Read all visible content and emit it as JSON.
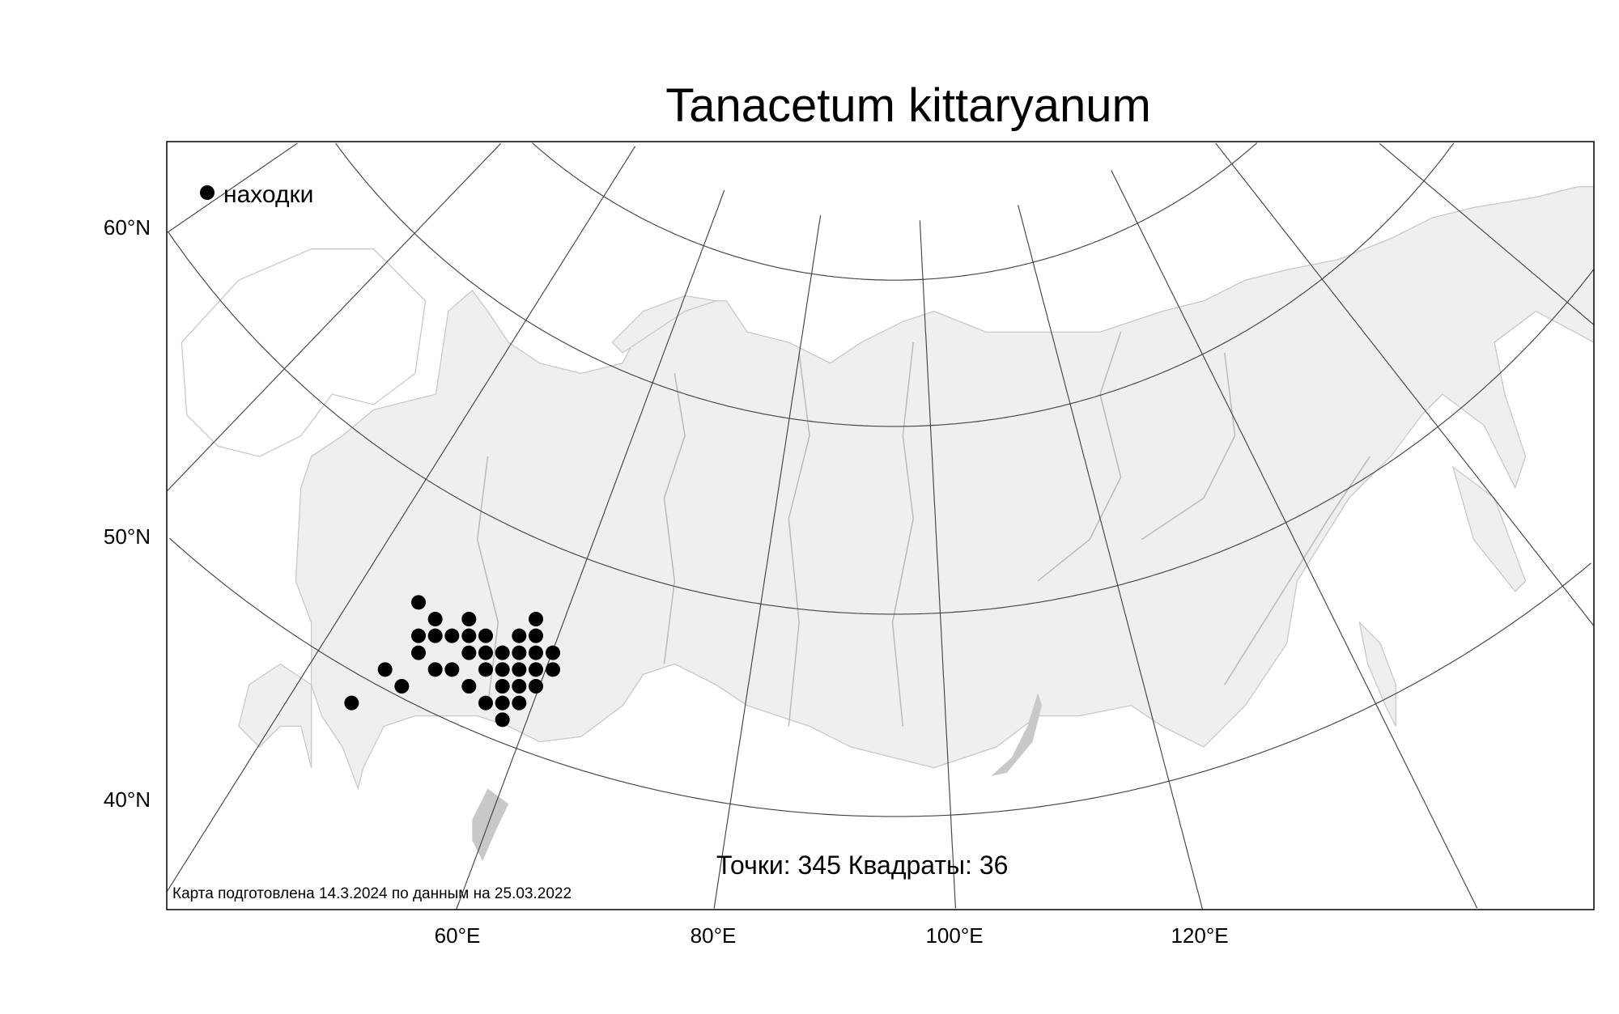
{
  "title": "Tanacetum kittaryanum",
  "legend": {
    "marker_label": "находки",
    "marker_color": "#000000"
  },
  "axes": {
    "lat_labels": [
      "60°N",
      "50°N",
      "40°N"
    ],
    "lon_labels": [
      "60°E",
      "80°E",
      "100°E",
      "120°E"
    ]
  },
  "stats_text": "Точки: 345 Квадраты: 36",
  "caption": "Карта подготовлена 14.3.2024 по данным на 25.03.2022",
  "colors": {
    "land": "#efefef",
    "water": "#c8c8c8",
    "frame": "#000000",
    "graticule": "#444444",
    "rivers": "#bbbbbb"
  }
}
